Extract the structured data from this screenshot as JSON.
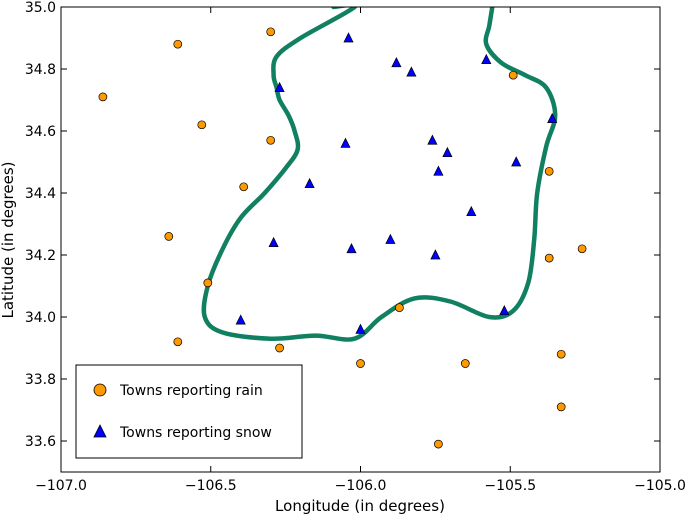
{
  "chart_data": {
    "type": "scatter",
    "xlabel": "Longitude (in degrees)",
    "ylabel": "Latitude (in degrees)",
    "xlim": [
      -107.0,
      -105.0
    ],
    "ylim": [
      33.5,
      35.0
    ],
    "xticks": [
      -107.0,
      -106.5,
      -106.0,
      -105.5,
      -105.0
    ],
    "xtick_labels": [
      "−107.0",
      "−106.5",
      "−106.0",
      "−105.5",
      "−105.0"
    ],
    "yticks": [
      33.6,
      33.8,
      34.0,
      34.2,
      34.4,
      34.6,
      34.8,
      35.0
    ],
    "ytick_labels": [
      "33.6",
      "33.8",
      "34.0",
      "34.2",
      "34.4",
      "34.6",
      "34.8",
      "35.0"
    ],
    "grid": false,
    "legend_position": "bottom-left",
    "series": [
      {
        "name": "Towns reporting rain",
        "marker": "circle",
        "color": "#ff9900",
        "points": [
          [
            -106.61,
            34.88
          ],
          [
            -106.3,
            34.92
          ],
          [
            -106.86,
            34.71
          ],
          [
            -106.53,
            34.62
          ],
          [
            -106.3,
            34.57
          ],
          [
            -106.39,
            34.42
          ],
          [
            -106.64,
            34.26
          ],
          [
            -106.51,
            34.11
          ],
          [
            -106.61,
            33.92
          ],
          [
            -106.27,
            33.9
          ],
          [
            -106.0,
            33.85
          ],
          [
            -105.87,
            34.03
          ],
          [
            -105.65,
            33.85
          ],
          [
            -105.74,
            33.59
          ],
          [
            -105.33,
            33.88
          ],
          [
            -105.33,
            33.71
          ],
          [
            -105.49,
            34.78
          ],
          [
            -105.37,
            34.47
          ],
          [
            -105.37,
            34.19
          ],
          [
            -105.26,
            34.22
          ]
        ]
      },
      {
        "name": "Towns reporting snow",
        "marker": "triangle",
        "color": "#0000ff",
        "points": [
          [
            -106.04,
            34.9
          ],
          [
            -105.88,
            34.82
          ],
          [
            -105.83,
            34.79
          ],
          [
            -105.58,
            34.83
          ],
          [
            -106.27,
            34.74
          ],
          [
            -106.05,
            34.56
          ],
          [
            -105.76,
            34.57
          ],
          [
            -105.71,
            34.53
          ],
          [
            -105.74,
            34.47
          ],
          [
            -105.48,
            34.5
          ],
          [
            -105.36,
            34.64
          ],
          [
            -106.17,
            34.43
          ],
          [
            -105.63,
            34.34
          ],
          [
            -106.29,
            34.24
          ],
          [
            -106.03,
            34.22
          ],
          [
            -105.9,
            34.25
          ],
          [
            -105.75,
            34.2
          ],
          [
            -106.4,
            33.99
          ],
          [
            -106.0,
            33.96
          ],
          [
            -105.52,
            34.02
          ]
        ]
      }
    ],
    "boundary": {
      "color": "#108060",
      "points": [
        [
          -106.09,
          35.0
        ],
        [
          -106.02,
          35.0
        ],
        [
          -106.2,
          34.9
        ],
        [
          -106.28,
          34.84
        ],
        [
          -106.29,
          34.78
        ],
        [
          -106.28,
          34.74
        ],
        [
          -106.27,
          34.7
        ],
        [
          -106.24,
          34.65
        ],
        [
          -106.22,
          34.6
        ],
        [
          -106.21,
          34.54
        ],
        [
          -106.25,
          34.48
        ],
        [
          -106.32,
          34.4
        ],
        [
          -106.4,
          34.32
        ],
        [
          -106.46,
          34.22
        ],
        [
          -106.51,
          34.1
        ],
        [
          -106.52,
          34.0
        ],
        [
          -106.46,
          33.95
        ],
        [
          -106.3,
          33.93
        ],
        [
          -106.15,
          33.94
        ],
        [
          -106.02,
          33.93
        ],
        [
          -105.93,
          34.0
        ],
        [
          -105.82,
          34.06
        ],
        [
          -105.7,
          34.05
        ],
        [
          -105.57,
          34.0
        ],
        [
          -105.49,
          34.02
        ],
        [
          -105.44,
          34.11
        ],
        [
          -105.42,
          34.25
        ],
        [
          -105.41,
          34.4
        ],
        [
          -105.38,
          34.55
        ],
        [
          -105.35,
          34.65
        ],
        [
          -105.38,
          34.74
        ],
        [
          -105.45,
          34.78
        ],
        [
          -105.53,
          34.82
        ],
        [
          -105.58,
          34.88
        ],
        [
          -105.57,
          34.94
        ],
        [
          -105.56,
          35.0
        ]
      ]
    }
  }
}
